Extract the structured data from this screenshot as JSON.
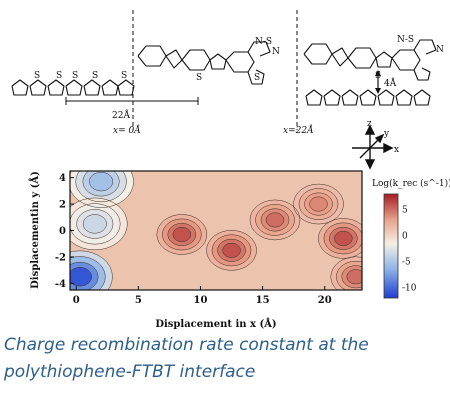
{
  "schematic": {
    "distance_22": "22Å",
    "x0_label": "x= 0Å",
    "x22_label": "x=22Å",
    "stack_distance": "4Å",
    "thiadiazole_1": "N-S",
    "thiadiazole_2": "N",
    "sulfur": "S",
    "axes": {
      "z": "z",
      "y": "y",
      "x": "x"
    }
  },
  "chart_data": {
    "type": "heatmap",
    "xlabel": "Displacement in x (Å)",
    "ylabel": "Displacementin y (Å)",
    "xlim": [
      -0.5,
      23
    ],
    "ylim": [
      -4.5,
      4.5
    ],
    "xticks": [
      0,
      5,
      10,
      15,
      20
    ],
    "yticks": [
      4,
      2,
      0,
      -2,
      -4
    ],
    "colorbar": {
      "title": "Log(k_rec (s^-1))",
      "ticks": [
        5,
        0,
        -5,
        -10
      ],
      "range": [
        -12,
        8
      ],
      "colors": [
        "#1f3fd1",
        "#8eb4e6",
        "#f5efe6",
        "#e9a38c",
        "#a61c24"
      ]
    },
    "hotspots": [
      {
        "x": 8.5,
        "y": -0.3,
        "value": 6
      },
      {
        "x": 12.5,
        "y": -1.5,
        "value": 6
      },
      {
        "x": 16.0,
        "y": 0.8,
        "value": 5
      },
      {
        "x": 21.5,
        "y": -0.6,
        "value": 6
      },
      {
        "x": 19.5,
        "y": 2.0,
        "value": 4
      },
      {
        "x": 22.5,
        "y": -3.5,
        "value": 5
      },
      {
        "x": 0.3,
        "y": -3.5,
        "value": -11
      },
      {
        "x": 2.0,
        "y": 3.7,
        "value": -6
      },
      {
        "x": 1.5,
        "y": 0.5,
        "value": -4
      }
    ]
  },
  "caption": {
    "line1": "Charge recombination rate constant at the",
    "line2": "polythiophene-FTBT interface"
  }
}
